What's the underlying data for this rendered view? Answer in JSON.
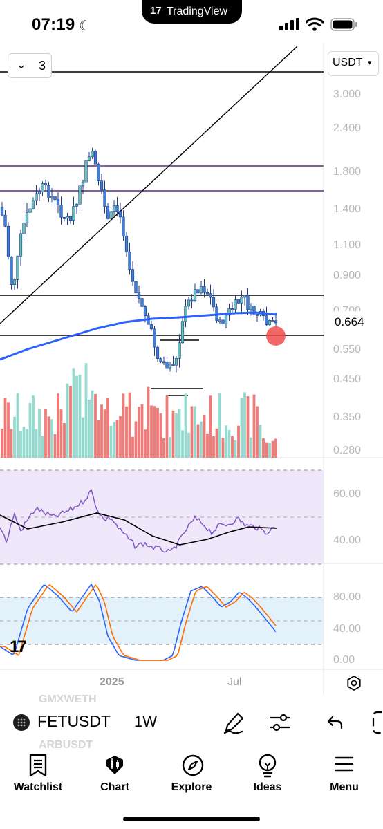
{
  "status_bar": {
    "time": "07:19",
    "island_label": "TradingView"
  },
  "chart": {
    "interval_selector": {
      "value": "3"
    },
    "currency": "USDT",
    "last_price": "0.664",
    "price_ticks": [
      "3.000",
      "2.400",
      "1.800",
      "1.400",
      "1.100",
      "0.900",
      "0.700",
      "0.550",
      "0.450",
      "0.350",
      "0.280"
    ],
    "rsi_ticks": [
      "60.00",
      "40.00"
    ],
    "stoch_ticks": [
      "80.00",
      "40.00",
      "0.00"
    ],
    "time_labels": [
      "2025",
      "Jul"
    ],
    "colors": {
      "up": "#26a69a",
      "down": "#ef5350",
      "ma": "#2962ff",
      "rsi": "#7e57c2",
      "stoch_k": "#2962ff",
      "stoch_d": "#ff6d00",
      "marker": "#f04e4e"
    }
  },
  "symbol_bar": {
    "symbol": "FETUSDT",
    "timeframe": "1W",
    "ghost_above": "GMXWETH",
    "ghost_below": "ARBUSDT"
  },
  "tabs": [
    {
      "label": "Watchlist",
      "icon": "watchlist-icon"
    },
    {
      "label": "Chart",
      "icon": "chart-icon"
    },
    {
      "label": "Explore",
      "icon": "compass-icon"
    },
    {
      "label": "Ideas",
      "icon": "lightbulb-icon"
    },
    {
      "label": "Menu",
      "icon": "menu-icon"
    }
  ]
}
